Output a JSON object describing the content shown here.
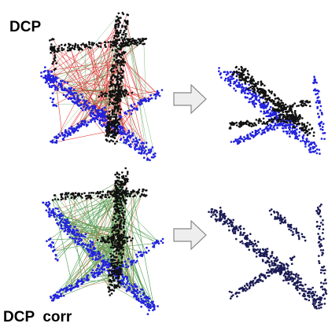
{
  "labels": {
    "top": "DCP",
    "bottom": "DCP  corr"
  }
}
